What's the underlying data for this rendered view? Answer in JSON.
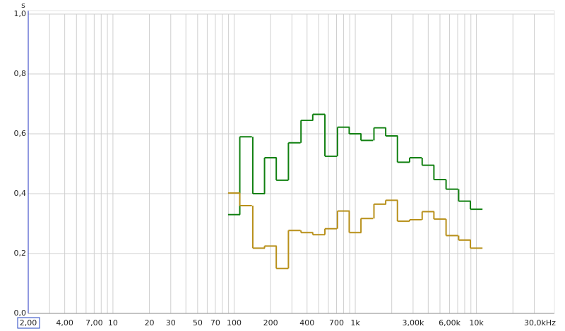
{
  "chart_data": {
    "type": "step",
    "y_unit": "s",
    "log_x": true,
    "grid": true,
    "xlim": [
      2,
      44000
    ],
    "ylim": [
      0,
      1
    ],
    "yticks": [
      {
        "value": 0,
        "label": "0,0"
      },
      {
        "value": 0.2,
        "label": "0,2"
      },
      {
        "value": 0.4,
        "label": "0,4"
      },
      {
        "value": 0.6,
        "label": "0,6"
      },
      {
        "value": 0.8,
        "label": "0,8"
      },
      {
        "value": 1,
        "label": "1,0"
      }
    ],
    "xticks": [
      {
        "value": 2,
        "label": "2,00"
      },
      {
        "value": 4,
        "label": "4,00"
      },
      {
        "value": 7,
        "label": "7,00"
      },
      10,
      20,
      30,
      50,
      70,
      100,
      200,
      400,
      700,
      {
        "value": 1000,
        "label": "1k"
      },
      {
        "value": 3000,
        "label": "3,00k"
      },
      {
        "value": 6000,
        "label": "6,00k"
      },
      {
        "value": 10000,
        "label": "10k"
      },
      {
        "value": 30000,
        "label": "30,0kHz"
      }
    ],
    "xgrid": [
      3,
      5,
      6,
      8,
      9,
      40,
      60,
      80,
      90,
      300,
      500,
      600,
      800,
      900,
      2000,
      4000,
      5000,
      7000,
      8000,
      9000,
      20000
    ],
    "x": [
      100,
      125,
      160,
      200,
      250,
      315,
      400,
      500,
      630,
      800,
      1000,
      1250,
      1600,
      2000,
      2500,
      3150,
      4000,
      5000,
      6300,
      8000,
      10000
    ],
    "series": [
      {
        "color": "#118011",
        "values": [
          0.33,
          0.59,
          0.4,
          0.52,
          0.445,
          0.57,
          0.645,
          0.665,
          0.525,
          0.622,
          0.6,
          0.578,
          0.62,
          0.593,
          0.505,
          0.52,
          0.495,
          0.447,
          0.415,
          0.375,
          0.348
        ]
      },
      {
        "color": "#b8901a",
        "values": [
          0.402,
          0.36,
          0.218,
          0.225,
          0.15,
          0.277,
          0.27,
          0.263,
          0.283,
          0.342,
          0.27,
          0.317,
          0.365,
          0.378,
          0.308,
          0.313,
          0.34,
          0.315,
          0.26,
          0.245,
          0.218
        ]
      }
    ]
  }
}
